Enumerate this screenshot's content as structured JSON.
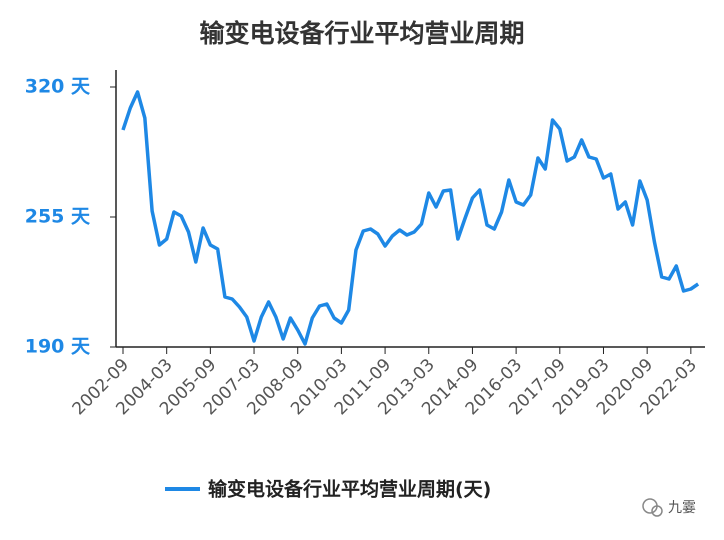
{
  "chart_data": {
    "type": "line",
    "title": "输变电设备行业平均营业周期",
    "categories": [
      "2002-09",
      null,
      null,
      null,
      null,
      null,
      "2004-03",
      null,
      null,
      null,
      null,
      null,
      "2005-09",
      null,
      null,
      null,
      null,
      null,
      "2007-03",
      null,
      null,
      null,
      null,
      null,
      "2008-09",
      null,
      null,
      null,
      null,
      null,
      "2010-03",
      null,
      null,
      null,
      null,
      null,
      "2011-09",
      null,
      null,
      null,
      null,
      null,
      "2013-03",
      null,
      null,
      null,
      null,
      null,
      "2014-09",
      null,
      null,
      null,
      null,
      null,
      "2016-03",
      null,
      null,
      null,
      null,
      null,
      "2017-09",
      null,
      null,
      null,
      null,
      null,
      "2019-03",
      null,
      null,
      null,
      null,
      null,
      "2020-09",
      null,
      null,
      null,
      null,
      null,
      "2022-03",
      null
    ],
    "series": [
      {
        "name": "输变电设备行业平均营业周期(天)",
        "color": "#1e88e5",
        "values": [
          298.5,
          309.5,
          317.5,
          304.5,
          258,
          241,
          244,
          257.5,
          255.5,
          247.5,
          232.5,
          249.5,
          241,
          239,
          215,
          214,
          210,
          205,
          193,
          205,
          212.5,
          205,
          194,
          204.5,
          198.5,
          191.5,
          204.5,
          210.5,
          211.5,
          204.5,
          202,
          208.5,
          238.5,
          248,
          249,
          246.5,
          240.5,
          245.5,
          248.5,
          246,
          247.5,
          251.5,
          267,
          260,
          268,
          268.5,
          244,
          254.5,
          264.5,
          268.5,
          251,
          249,
          257.5,
          273.5,
          262.5,
          261,
          266,
          284.5,
          279,
          303.5,
          299,
          283,
          285,
          293.5,
          285,
          284,
          274.5,
          276.5,
          259,
          262.5,
          251,
          273,
          263.5,
          242.5,
          225,
          224,
          230.5,
          218,
          219,
          221.5
        ]
      }
    ],
    "ylim": [
      190,
      320
    ],
    "yticks": [
      {
        "value": 190,
        "label": "190 天"
      },
      {
        "value": 255,
        "label": "255 天"
      },
      {
        "value": 320,
        "label": "320 天"
      }
    ],
    "watermark": "九霎"
  }
}
